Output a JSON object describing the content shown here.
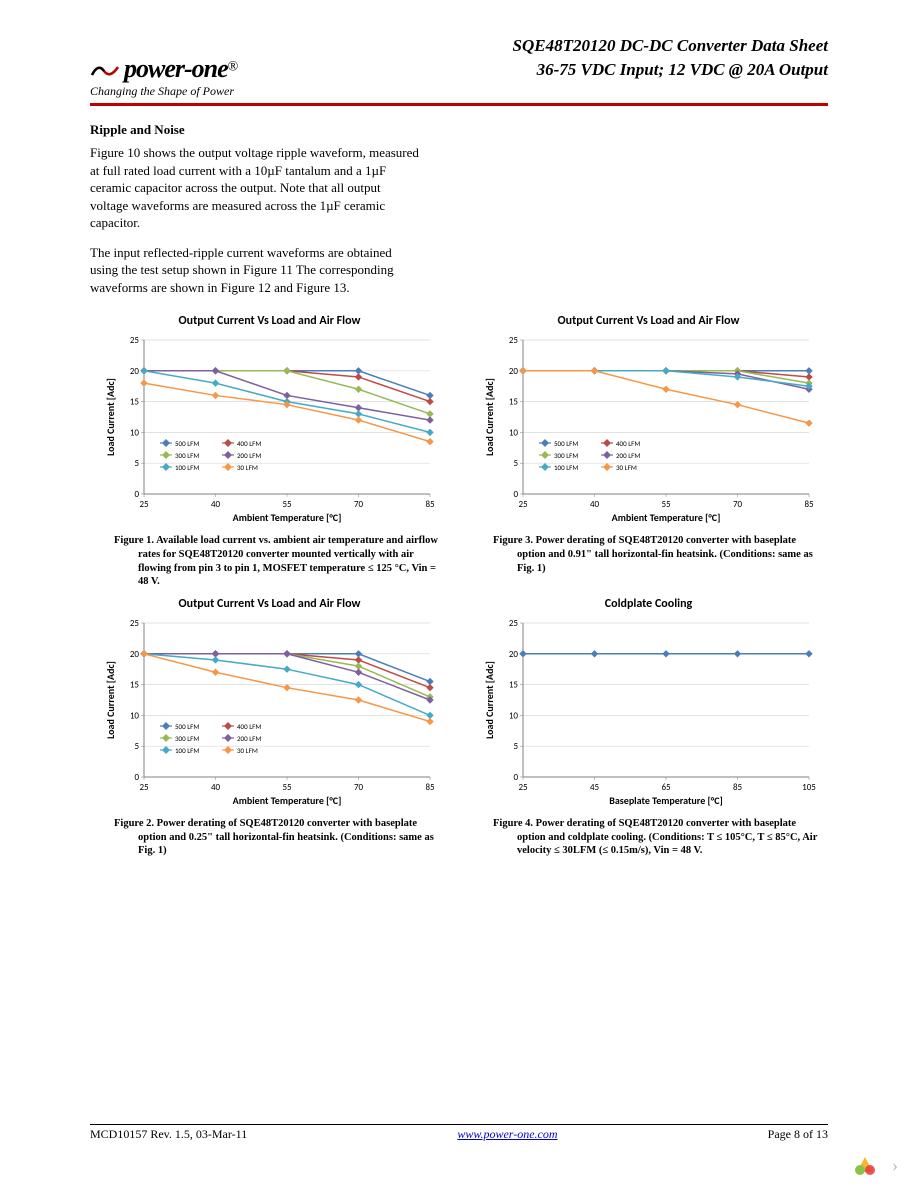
{
  "header": {
    "logo_text": "power-one",
    "logo_reg": "®",
    "logo_tagline": "Changing the Shape of Power",
    "title_line1": "SQE48T20120 DC-DC Converter Data Sheet",
    "title_line2": "36-75 VDC Input; 12 VDC @ 20A Output"
  },
  "section_title": "Ripple and Noise",
  "para1": "Figure 10 shows the output voltage ripple waveform, measured at full rated load current with a 10µF tantalum and a 1µF ceramic capacitor across the output. Note that all output voltage waveforms are measured across the 1µF ceramic capacitor.",
  "para2": "The input reflected-ripple current waveforms are obtained using the test setup shown in Figure 11 The corresponding waveforms are shown in Figure 12 and Figure 13.",
  "charts": {
    "common": {
      "x_ticks": [
        25,
        40,
        55,
        70,
        85
      ],
      "y_ticks": [
        0,
        5,
        10,
        15,
        20,
        25
      ],
      "x_label": "Ambient Temperature [°C]",
      "y_label": "Load Current [Adc]",
      "series_colors": {
        "500": "#4a7ebb",
        "400": "#be4b48",
        "300": "#98b954",
        "200": "#7d60a0",
        "100": "#46aac5",
        "30": "#f79646"
      },
      "marker": "diamond",
      "marker_size": 4,
      "grid_color": "#d9d9d9",
      "axis_color": "#808080",
      "legend_labels": [
        "500 LFM",
        "400 LFM",
        "300 LFM",
        "200 LFM",
        "100 LFM",
        "30 LFM"
      ]
    },
    "fig1": {
      "title": "Output Current Vs Load and Air Flow",
      "series": {
        "500": [
          20,
          20,
          20,
          20,
          16
        ],
        "400": [
          20,
          20,
          20,
          19,
          15
        ],
        "300": [
          20,
          20,
          20,
          17,
          13
        ],
        "200": [
          20,
          20,
          16,
          14,
          12
        ],
        "100": [
          20,
          18,
          15,
          13,
          10
        ],
        "30": [
          18,
          16,
          14.5,
          12,
          8.5
        ]
      },
      "caption_bold": "Figure 1.   Available load current vs. ambient air temperature and airflow rates for SQE48T20120 converter mounted vertically with air flowing from pin 3 to pin 1, MOSFET temperature            ≤ 125 °C, Vin = 48 V."
    },
    "fig2": {
      "title": "Output Current Vs Load and Air Flow",
      "series": {
        "500": [
          20,
          20,
          20,
          20,
          15.5
        ],
        "400": [
          20,
          20,
          20,
          19,
          14.5
        ],
        "300": [
          20,
          20,
          20,
          18,
          13
        ],
        "200": [
          20,
          20,
          20,
          17,
          12.5
        ],
        "100": [
          20,
          19,
          17.5,
          15,
          10
        ],
        "30": [
          20,
          17,
          14.5,
          12.5,
          9
        ]
      },
      "caption_bold": "Figure 2.   Power derating of SQE48T20120 converter with baseplate option and 0.25\" tall horizontal-fin heatsink. (Conditions: same as Fig. 1)"
    },
    "fig3": {
      "title": "Output Current Vs Load and Air Flow",
      "series": {
        "500": [
          20,
          20,
          20,
          20,
          20
        ],
        "400": [
          20,
          20,
          20,
          20,
          19
        ],
        "300": [
          20,
          20,
          20,
          20,
          18
        ],
        "200": [
          20,
          20,
          20,
          19.5,
          17
        ],
        "100": [
          20,
          20,
          20,
          19,
          17.5
        ],
        "30": [
          20,
          20,
          17,
          14.5,
          11.5
        ]
      },
      "caption_bold": "Figure 3.   Power derating of SQE48T20120 converter with baseplate option and 0.91\" tall horizontal-fin heatsink. (Conditions: same as Fig. 1)"
    },
    "fig4": {
      "title": "Coldplate Cooling",
      "x_ticks": [
        25,
        45,
        65,
        85,
        105
      ],
      "x_label": "Baseplate Temperature [°C]",
      "series": {
        "line": [
          20,
          20,
          20,
          20,
          20
        ]
      },
      "color": "#4a7ebb",
      "caption_bold": "Figure 4.   Power derating of SQE48T20120 converter with baseplate option and coldplate cooling. (Conditions: T        ≤ 105°C, T        ≤ 85°C, Air velocity        ≤ 30LFM (≤ 0.15m/s), Vin = 48 V."
    }
  },
  "footer": {
    "left": "MCD10157 Rev. 1.5, 03-Mar-11",
    "center_link": "www.power-one.com",
    "right": "Page 8 of 13"
  }
}
